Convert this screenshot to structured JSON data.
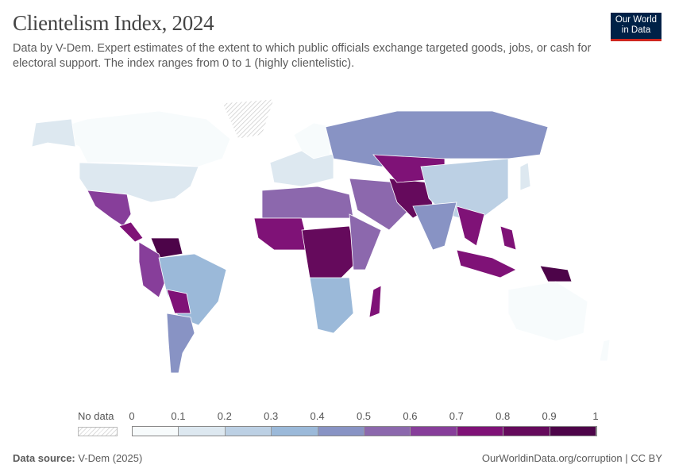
{
  "header": {
    "title": "Clientelism Index, 2024",
    "subtitle": "Data by V-Dem. Expert estimates of the extent to which public officials exchange targeted goods, jobs, or cash for electoral support. The index ranges from 0 to 1 (highly clientelistic).",
    "logo": "Our World in Data"
  },
  "legend": {
    "no_data_label": "No data",
    "ticks": [
      "0",
      "0.1",
      "0.2",
      "0.3",
      "0.4",
      "0.5",
      "0.6",
      "0.7",
      "0.8",
      "0.9",
      "1"
    ],
    "colors": [
      "#f7fbfc",
      "#dde8f0",
      "#bcd0e4",
      "#9bb9d9",
      "#8893c4",
      "#8c68ad",
      "#873e9a",
      "#7f1277",
      "#650a5c",
      "#4d0449"
    ],
    "no_data_color": "#e6e6e6"
  },
  "map": {
    "regions": [
      {
        "name": "Canada",
        "value": 0.05
      },
      {
        "name": "Alaska",
        "value": 0.1
      },
      {
        "name": "United States",
        "value": 0.1
      },
      {
        "name": "Mexico",
        "value": 0.6
      },
      {
        "name": "Central America",
        "value": 0.75
      },
      {
        "name": "Venezuela",
        "value": 0.95
      },
      {
        "name": "Colombia-Peru",
        "value": 0.6
      },
      {
        "name": "Brazil",
        "value": 0.35
      },
      {
        "name": "Bolivia-Paraguay",
        "value": 0.7
      },
      {
        "name": "Argentina",
        "value": 0.45
      },
      {
        "name": "Europe",
        "value": 0.15
      },
      {
        "name": "Scandinavia",
        "value": 0.05
      },
      {
        "name": "Russia",
        "value": 0.45
      },
      {
        "name": "North Africa",
        "value": 0.55
      },
      {
        "name": "West Africa",
        "value": 0.7
      },
      {
        "name": "Central Africa",
        "value": 0.85
      },
      {
        "name": "East Africa",
        "value": 0.55
      },
      {
        "name": "Southern Africa",
        "value": 0.3
      },
      {
        "name": "Madagascar",
        "value": 0.75
      },
      {
        "name": "Middle East",
        "value": 0.55
      },
      {
        "name": "Iran-Pakistan",
        "value": 0.85
      },
      {
        "name": "Central Asia",
        "value": 0.7
      },
      {
        "name": "China",
        "value": 0.25
      },
      {
        "name": "India",
        "value": 0.45
      },
      {
        "name": "Southeast Asia",
        "value": 0.7
      },
      {
        "name": "Indonesia",
        "value": 0.75
      },
      {
        "name": "Philippines",
        "value": 0.75
      },
      {
        "name": "Papua New Guinea",
        "value": 0.9
      },
      {
        "name": "Australia",
        "value": 0.05
      },
      {
        "name": "New Zealand",
        "value": 0.05
      },
      {
        "name": "Japan",
        "value": 0.1
      },
      {
        "name": "Greenland",
        "value": null
      }
    ]
  },
  "footer": {
    "source_label": "Data source:",
    "source": "V-Dem (2025)",
    "link": "OurWorldinData.org/corruption | CC BY"
  }
}
